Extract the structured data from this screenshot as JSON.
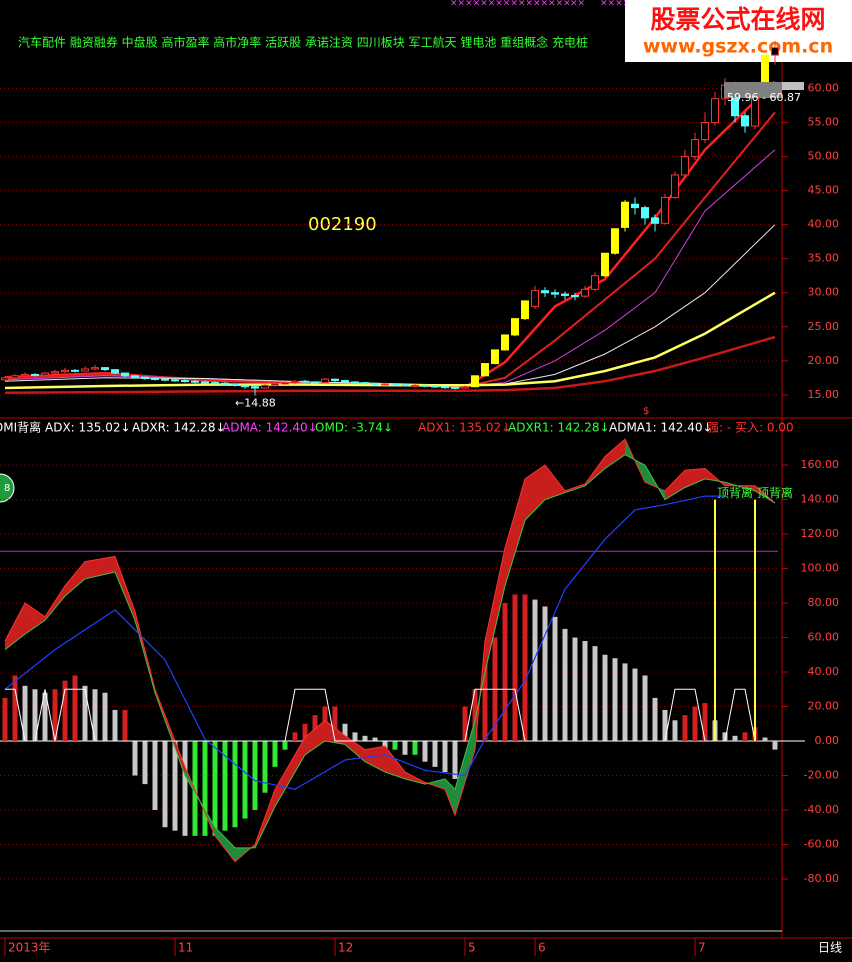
{
  "header": {
    "tags": "汽车配件 融资融券 中盘股 高市盈率 高市净率 活跃股 承诺注资 四川板块 军工航天 锂电池 重组概念 充电桩",
    "code": "002190",
    "watermark": {
      "name": "股票公式在线网",
      "url": "www.gszx.com.cn"
    },
    "marks": [
      "××××××××××××××××",
      "××",
      "×××××××××"
    ]
  },
  "indicator_title": "DMI背离",
  "legend": [
    {
      "text": "ADX: 135.02↓",
      "color": "#ffffff"
    },
    {
      "text": "ADXR: 142.28↓",
      "color": "#ffffff"
    },
    {
      "text": "ADMA: 142.40↓",
      "color": "#ff40ff"
    },
    {
      "text": "OMD: -3.74↓",
      "color": "#33ff33"
    },
    {
      "text": "ADX1: 135.02↓",
      "color": "#ff3232"
    },
    {
      "text": "ADXR1: 142.28↓",
      "color": "#33ff33"
    },
    {
      "text": "ADMA1: 142.40↓",
      "color": "#ffffff"
    },
    {
      "text": "强: - 买入: 0.00",
      "color": "#ff3232"
    }
  ],
  "badge": "8",
  "marker": "$",
  "period_label": "日线",
  "chart_data": [
    {
      "type": "candlestick",
      "xlim": [
        -0.5,
        77.5
      ],
      "ylim": [
        11.6,
        73.0
      ],
      "grid": true,
      "yticks": [
        {
          "value": 15,
          "label": "15.00"
        },
        {
          "value": 20,
          "label": "20.00"
        },
        {
          "value": 25,
          "label": "25.00"
        },
        {
          "value": 30,
          "label": "30.00"
        },
        {
          "value": 35,
          "label": "35.00"
        },
        {
          "value": 40,
          "label": "40.00"
        },
        {
          "value": 45,
          "label": "45.00"
        },
        {
          "value": 50,
          "label": "50.00"
        },
        {
          "value": 55,
          "label": "55.00"
        },
        {
          "value": 60,
          "label": "60.00"
        }
      ],
      "open": [
        17.2,
        17.5,
        17.8,
        18.0,
        17.9,
        18.2,
        18.4,
        18.6,
        18.5,
        18.8,
        19.0,
        18.7,
        18.2,
        17.8,
        17.6,
        17.4,
        17.3,
        17.2,
        17.1,
        17.0,
        16.9,
        16.8,
        16.7,
        16.6,
        16.4,
        16.2,
        16.0,
        16.4,
        16.6,
        16.8,
        17.0,
        16.9,
        16.8,
        17.3,
        17.1,
        16.9,
        16.8,
        16.7,
        16.6,
        16.6,
        16.5,
        16.4,
        16.4,
        16.3,
        16.2,
        16.1,
        16.0,
        16.2,
        17.8,
        19.6,
        21.6,
        23.8,
        26.2,
        28.0,
        30.3,
        30.0,
        29.8,
        29.6,
        29.5,
        30.5,
        32.5,
        35.8,
        39.6,
        43.0,
        42.5,
        41.0,
        40.2,
        44.0,
        47.3,
        50.0,
        52.5,
        55.0,
        58.5,
        60.5,
        56.0,
        54.5,
        59.0,
        64.9
      ],
      "high": [
        17.7,
        18.0,
        18.3,
        18.2,
        18.4,
        18.7,
        19.0,
        18.8,
        19.2,
        19.4,
        19.1,
        18.8,
        18.3,
        17.9,
        17.7,
        17.6,
        17.5,
        17.4,
        17.3,
        17.2,
        17.1,
        17.0,
        16.9,
        16.7,
        16.5,
        16.3,
        16.6,
        16.8,
        17.0,
        17.2,
        17.2,
        17.0,
        17.5,
        17.4,
        17.2,
        17.0,
        16.9,
        16.8,
        16.8,
        16.7,
        16.6,
        16.6,
        16.5,
        16.4,
        16.3,
        16.2,
        16.4,
        17.8,
        19.6,
        21.6,
        23.8,
        26.2,
        28.8,
        31.0,
        30.8,
        30.5,
        30.2,
        30.0,
        31.0,
        33.0,
        35.8,
        39.4,
        43.6,
        44.0,
        42.8,
        41.5,
        44.5,
        47.8,
        51.0,
        53.5,
        56.5,
        59.5,
        61.5,
        61.0,
        56.5,
        59.5,
        64.9,
        67.0
      ],
      "low": [
        17.0,
        17.3,
        17.6,
        17.7,
        17.8,
        18.0,
        18.2,
        18.3,
        18.4,
        18.6,
        18.5,
        18.0,
        17.6,
        17.4,
        17.2,
        17.1,
        17.0,
        16.9,
        16.8,
        16.7,
        16.6,
        16.5,
        16.4,
        16.2,
        15.9,
        14.88,
        15.9,
        16.2,
        16.5,
        16.6,
        16.7,
        16.6,
        16.7,
        16.9,
        16.8,
        16.6,
        16.5,
        16.4,
        16.4,
        16.3,
        16.2,
        16.2,
        16.1,
        16.0,
        15.9,
        15.8,
        15.9,
        16.1,
        17.7,
        19.5,
        21.5,
        23.6,
        26.0,
        27.6,
        29.4,
        29.2,
        29.0,
        28.9,
        29.2,
        30.2,
        32.3,
        35.6,
        39.0,
        41.5,
        40.0,
        39.0,
        40.0,
        43.8,
        47.0,
        49.5,
        52.0,
        54.5,
        57.5,
        55.0,
        53.5,
        54.0,
        58.5,
        63.5
      ],
      "close": [
        17.5,
        17.8,
        18.0,
        17.9,
        18.2,
        18.4,
        18.6,
        18.5,
        18.8,
        19.0,
        18.7,
        18.2,
        17.8,
        17.6,
        17.4,
        17.3,
        17.2,
        17.1,
        17.0,
        16.9,
        16.8,
        16.7,
        16.6,
        16.4,
        16.2,
        16.0,
        16.4,
        16.6,
        16.8,
        17.0,
        16.9,
        16.8,
        17.3,
        17.1,
        16.9,
        16.8,
        16.7,
        16.6,
        16.6,
        16.5,
        16.4,
        16.4,
        16.3,
        16.2,
        16.1,
        16.0,
        16.2,
        17.8,
        19.6,
        21.6,
        23.8,
        26.2,
        28.8,
        30.3,
        30.0,
        29.8,
        29.6,
        29.5,
        30.5,
        32.5,
        35.8,
        39.4,
        43.3,
        42.5,
        41.0,
        40.2,
        44.0,
        47.3,
        50.0,
        52.5,
        55.0,
        58.5,
        60.5,
        56.0,
        54.5,
        59.0,
        64.9,
        66.0
      ],
      "series": [
        {
          "color": "#ff2020",
          "width": 2.5,
          "x": [
            0,
            10,
            20,
            30,
            40,
            46,
            50,
            55,
            60,
            65,
            70,
            77
          ],
          "values": [
            17.6,
            18.2,
            17.1,
            16.8,
            16.5,
            16.1,
            19.8,
            28.0,
            32.0,
            41.0,
            51.0,
            61.0
          ]
        },
        {
          "color": "#e02020",
          "width": 2,
          "x": [
            0,
            10,
            20,
            30,
            40,
            46,
            50,
            55,
            60,
            65,
            70,
            77
          ],
          "values": [
            17.4,
            18.0,
            17.3,
            16.8,
            16.5,
            16.2,
            17.5,
            23.0,
            29.0,
            35.0,
            44.0,
            56.5
          ]
        },
        {
          "color": "#d040e0",
          "width": 1,
          "x": [
            0,
            10,
            20,
            30,
            40,
            46,
            50,
            55,
            60,
            65,
            70,
            77
          ],
          "values": [
            17.2,
            17.8,
            17.4,
            16.9,
            16.5,
            16.3,
            16.8,
            20.0,
            24.5,
            30.0,
            42.0,
            51.0
          ]
        },
        {
          "color": "#e8e8e8",
          "width": 1,
          "x": [
            0,
            10,
            20,
            30,
            40,
            46,
            50,
            55,
            60,
            65,
            70,
            77
          ],
          "values": [
            17.0,
            17.5,
            17.4,
            16.9,
            16.6,
            16.4,
            16.6,
            18.0,
            21.0,
            25.0,
            30.0,
            40.0
          ]
        },
        {
          "color": "#ffff60",
          "width": 2.5,
          "x": [
            0,
            10,
            20,
            30,
            40,
            46,
            50,
            55,
            60,
            65,
            70,
            77
          ],
          "values": [
            16.0,
            16.3,
            16.5,
            16.5,
            16.4,
            16.4,
            16.5,
            17.0,
            18.5,
            20.5,
            24.0,
            30.0
          ]
        },
        {
          "color": "#c81818",
          "width": 2.5,
          "x": [
            0,
            10,
            20,
            30,
            40,
            46,
            50,
            55,
            60,
            65,
            70,
            77
          ],
          "values": [
            15.3,
            15.4,
            15.5,
            15.6,
            15.6,
            15.6,
            15.7,
            16.0,
            17.0,
            18.5,
            20.5,
            23.5
          ]
        }
      ],
      "min_label": {
        "text": "←14.88",
        "index": 25
      },
      "price_label": "59.96 - 60.87"
    },
    {
      "type": "bar",
      "xlim": [
        -0.5,
        77.5
      ],
      "ylim": [
        -109.6,
        175.7
      ],
      "grid": true,
      "yticks": [
        {
          "value": -80,
          "label": "-80.00"
        },
        {
          "value": -60,
          "label": "-60.00"
        },
        {
          "value": -40,
          "label": "-40.00"
        },
        {
          "value": -20,
          "label": "-20.00"
        },
        {
          "value": 0,
          "label": "0.00"
        },
        {
          "value": 20,
          "label": "20.00"
        },
        {
          "value": 40,
          "label": "40.00"
        },
        {
          "value": 60,
          "label": "60.00"
        },
        {
          "value": 80,
          "label": "80.00"
        },
        {
          "value": 100,
          "label": "100.00"
        },
        {
          "value": 120,
          "label": "120.00"
        },
        {
          "value": 140,
          "label": "140.00"
        },
        {
          "value": 160,
          "label": "160.00"
        }
      ],
      "xticks": [
        {
          "value": 0,
          "label": "2013年"
        },
        {
          "value": 17,
          "label": "11"
        },
        {
          "value": 33,
          "label": "12"
        },
        {
          "value": 46,
          "label": "5"
        },
        {
          "value": 53,
          "label": "6"
        },
        {
          "value": 69,
          "label": "7"
        }
      ],
      "values": [
        25,
        38,
        32,
        30,
        28,
        30,
        35,
        38,
        32,
        30,
        28,
        18,
        18,
        -20,
        -25,
        -40,
        -50,
        -52,
        -55,
        -55,
        -55,
        -55,
        -52,
        -50,
        -45,
        -40,
        -30,
        -15,
        -5,
        5,
        10,
        15,
        20,
        20,
        10,
        5,
        3,
        2,
        -5,
        -5,
        -8,
        -8,
        -12,
        -15,
        -18,
        -22,
        20,
        30,
        45,
        60,
        80,
        85,
        85,
        82,
        78,
        72,
        65,
        60,
        58,
        55,
        50,
        48,
        45,
        42,
        38,
        25,
        18,
        12,
        15,
        20,
        22,
        12,
        5,
        3,
        5,
        8,
        2,
        -5
      ],
      "colors": {
        "rise": "#d42020",
        "fall": "#c8c8c8",
        "recover": "#33e833"
      },
      "band_colors": [
        "#c81e1e",
        "#1e8c3c"
      ],
      "series": [
        {
          "color": "#ff3030",
          "width": 1,
          "x": [
            0,
            2,
            4,
            6,
            8,
            11,
            13,
            15,
            18,
            21,
            23,
            25,
            27,
            30,
            32,
            34,
            36,
            38,
            40,
            42,
            44,
            45,
            47,
            48,
            50,
            52,
            54,
            56,
            58,
            60,
            62,
            64,
            66,
            68,
            70,
            72,
            75,
            77
          ],
          "values": [
            58,
            80,
            72,
            90,
            104,
            107,
            75,
            30,
            -15,
            -55,
            -70,
            -60,
            -28,
            2,
            12,
            3,
            -5,
            -3,
            -18,
            -24,
            -28,
            -43,
            -5,
            58,
            112,
            152,
            160,
            145,
            149,
            165,
            175,
            150,
            145,
            157,
            158,
            148,
            148,
            138
          ]
        },
        {
          "color": "#40c040",
          "width": 1,
          "x": [
            0,
            2,
            4,
            6,
            8,
            11,
            13,
            15,
            18,
            21,
            23,
            25,
            27,
            30,
            32,
            34,
            36,
            38,
            40,
            42,
            44,
            45,
            47,
            48,
            50,
            52,
            54,
            56,
            58,
            60,
            62,
            64,
            66,
            68,
            70,
            72,
            75,
            77
          ],
          "values": [
            53,
            62,
            70,
            84,
            94,
            98,
            70,
            28,
            -20,
            -50,
            -62,
            -62,
            -38,
            -8,
            0,
            -2,
            -12,
            -18,
            -22,
            -25,
            -22,
            -28,
            12,
            40,
            90,
            128,
            140,
            144,
            148,
            158,
            166,
            160,
            140,
            147,
            152,
            150,
            145,
            138
          ]
        },
        {
          "color": "#2040ff",
          "width": 1.2,
          "x": [
            0,
            5,
            11,
            16,
            20,
            25,
            29,
            34,
            38,
            42,
            46,
            48,
            52,
            56,
            60,
            63,
            66,
            70,
            72
          ],
          "values": [
            30,
            53,
            76,
            47,
            1,
            -23,
            -28,
            -11,
            -8,
            -17,
            -20,
            1,
            35,
            88,
            117,
            134,
            137,
            142,
            142
          ]
        },
        {
          "color": "#ffffff",
          "width": 1,
          "x": [
            0,
            1,
            2,
            3,
            4,
            5,
            6,
            7,
            8,
            9,
            28,
            29,
            32,
            33,
            46,
            47,
            51,
            52,
            66,
            67,
            69,
            70,
            72,
            73,
            74,
            75
          ],
          "values": [
            30,
            30,
            0,
            0,
            30,
            0,
            30,
            30,
            30,
            0,
            0,
            30,
            30,
            0,
            0,
            30,
            30,
            0,
            0,
            30,
            30,
            0,
            0,
            30,
            30,
            0
          ]
        }
      ],
      "reference_line": {
        "value": 110,
        "color": "#c020c0"
      },
      "signals": [
        {
          "x": 71,
          "value": 140,
          "label": "顶背离"
        },
        {
          "x": 75,
          "value": 140,
          "label": "顶背离"
        }
      ]
    }
  ]
}
